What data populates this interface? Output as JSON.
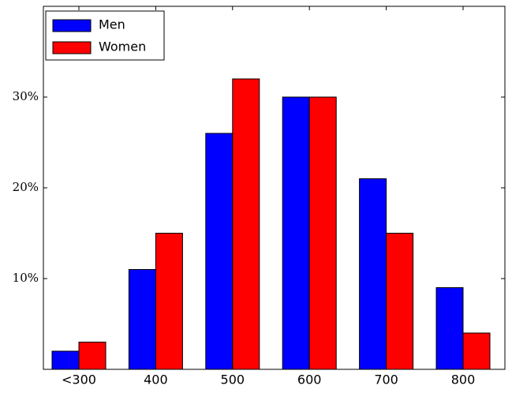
{
  "chart_data": {
    "type": "bar",
    "categories": [
      "<300",
      "400",
      "500",
      "600",
      "700",
      "800"
    ],
    "series": [
      {
        "name": "Men",
        "color": "#0000ff",
        "values": [
          2,
          11,
          26,
          30,
          21,
          9
        ]
      },
      {
        "name": "Women",
        "color": "#ff0000",
        "values": [
          3,
          15,
          32,
          30,
          15,
          4
        ]
      }
    ],
    "ylim": [
      0,
      40
    ],
    "yticks": [
      {
        "value": 10,
        "label": "10%"
      },
      {
        "value": 20,
        "label": "20%"
      },
      {
        "value": 30,
        "label": "30%"
      }
    ],
    "legend": "upper left"
  }
}
